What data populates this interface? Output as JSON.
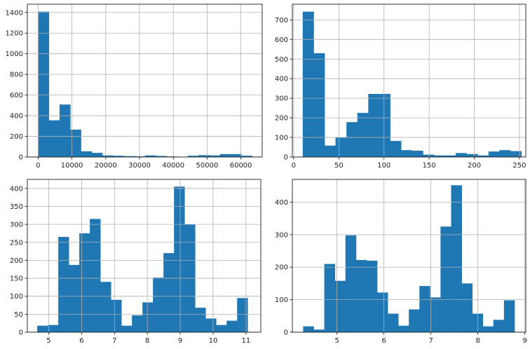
{
  "colors": {
    "bar": "#1f77b4",
    "grid": "#b0b0b0",
    "background": "#ffffff"
  },
  "chart_data": [
    {
      "type": "bar",
      "title": "",
      "xlabel": "",
      "ylabel": "",
      "grid": true,
      "xlim": [
        -3200,
        66300
      ],
      "ylim": [
        0,
        1480
      ],
      "xticks": [
        0,
        10000,
        20000,
        30000,
        40000,
        50000,
        60000
      ],
      "yticks": [
        0,
        200,
        400,
        600,
        800,
        1000,
        1200,
        1400
      ],
      "bin_edges": [
        0,
        3165,
        6330,
        9495,
        12660,
        15825,
        18990,
        22155,
        25320,
        28485,
        31650,
        34815,
        37980,
        41145,
        44310,
        47475,
        50640,
        53805,
        56970,
        60135,
        63300
      ],
      "values": [
        1408,
        355,
        508,
        265,
        55,
        40,
        15,
        12,
        8,
        6,
        15,
        10,
        5,
        3,
        12,
        18,
        15,
        28,
        28,
        12
      ]
    },
    {
      "type": "bar",
      "title": "",
      "xlabel": "",
      "ylabel": "",
      "grid": true,
      "xlim": [
        -1.5,
        257
      ],
      "ylim": [
        0,
        780
      ],
      "xticks": [
        0,
        50,
        100,
        150,
        200,
        250
      ],
      "yticks": [
        0,
        100,
        200,
        300,
        400,
        500,
        600,
        700
      ],
      "bin_edges": [
        10,
        22.1,
        34.2,
        46.3,
        58.4,
        70.5,
        82.6,
        94.7,
        106.8,
        118.9,
        131,
        143.1,
        155.2,
        167.3,
        179.4,
        191.5,
        203.6,
        215.7,
        227.8,
        239.9,
        252
      ],
      "values": [
        742,
        530,
        58,
        100,
        178,
        225,
        322,
        322,
        82,
        35,
        32,
        12,
        8,
        8,
        20,
        15,
        8,
        28,
        35,
        30
      ]
    },
    {
      "type": "bar",
      "title": "",
      "xlabel": "",
      "ylabel": "",
      "grid": true,
      "xlim": [
        4.35,
        11.45
      ],
      "ylim": [
        0,
        425
      ],
      "xticks": [
        5,
        6,
        7,
        8,
        9,
        10,
        11
      ],
      "yticks": [
        0,
        50,
        100,
        150,
        200,
        250,
        300,
        350,
        400
      ],
      "bin_edges": [
        4.65,
        4.97,
        5.29,
        5.61,
        5.93,
        6.25,
        6.57,
        6.89,
        7.21,
        7.53,
        7.85,
        8.17,
        8.49,
        8.81,
        9.13,
        9.45,
        9.77,
        10.09,
        10.41,
        10.73,
        11.05
      ],
      "values": [
        18,
        20,
        265,
        187,
        275,
        315,
        140,
        90,
        18,
        47,
        83,
        152,
        220,
        405,
        300,
        68,
        38,
        20,
        32,
        95
      ]
    },
    {
      "type": "bar",
      "title": "",
      "xlabel": "",
      "ylabel": "",
      "grid": true,
      "xlim": [
        4.05,
        9.02
      ],
      "ylim": [
        0,
        470
      ],
      "xticks": [
        5,
        6,
        7,
        8,
        9
      ],
      "yticks": [
        0,
        100,
        200,
        300,
        400
      ],
      "bin_edges": [
        4.28,
        4.505,
        4.73,
        4.955,
        5.18,
        5.405,
        5.63,
        5.855,
        6.08,
        6.305,
        6.53,
        6.755,
        6.98,
        7.205,
        7.43,
        7.655,
        7.88,
        8.105,
        8.33,
        8.555,
        8.78
      ],
      "values": [
        18,
        8,
        210,
        158,
        298,
        222,
        220,
        122,
        57,
        20,
        70,
        142,
        107,
        325,
        452,
        150,
        57,
        18,
        38,
        98
      ]
    }
  ]
}
